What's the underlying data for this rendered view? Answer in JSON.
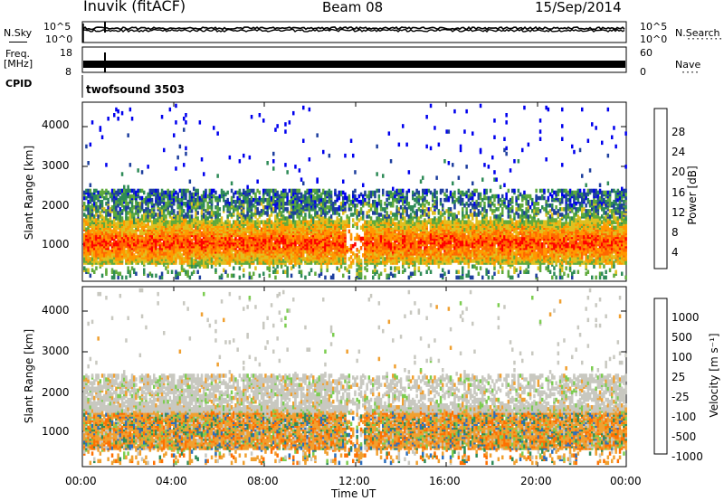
{
  "header": {
    "station": "Inuvik (fitACF)",
    "beam": "Beam 08",
    "date": "15/Sep/2014"
  },
  "noise_panel": {
    "left_label": "N.Sky",
    "right_label": "N.Search",
    "left_ticks": [
      "10^5",
      "10^0"
    ],
    "right_ticks": [
      "10^5",
      "10^0"
    ]
  },
  "freq_panel": {
    "left_label_1": "Freq.",
    "left_label_2": "[MHz]",
    "right_label": "Nave",
    "left_ticks": [
      "18",
      "8"
    ],
    "right_ticks": [
      "60",
      "0"
    ]
  },
  "cpid_panel": {
    "label": "CPID",
    "program": "twofsound 3503"
  },
  "x_axis": {
    "title": "Time UT",
    "ticks": [
      "00:00",
      "04:00",
      "08:00",
      "12:00",
      "16:00",
      "20:00",
      "00:00"
    ]
  },
  "colors": {
    "power_scale": [
      "#0000ee",
      "#1e3f9e",
      "#2e8b57",
      "#5faa3c",
      "#e0c020",
      "#ff9900",
      "#ff6600",
      "#ff0000"
    ],
    "velocity_scale": [
      "#1e3fae",
      "#2b6fbe",
      "#2e8b57",
      "#7ccd50",
      "#c8c8c0",
      "#f0a030",
      "#ff7000",
      "#ff3000",
      "#ee0000"
    ]
  },
  "chart_data": [
    {
      "type": "heatmap",
      "title": "",
      "xlabel": "Time UT",
      "ylabel": "Slant Range [km]",
      "xlim": [
        0,
        24
      ],
      "ylim": [
        180,
        4500
      ],
      "y_ticks": [
        "1000",
        "2000",
        "3000",
        "4000"
      ],
      "colorbar": {
        "label": "Power [dB]",
        "ticks": [
          "28",
          "24",
          "20",
          "16",
          "12",
          "8",
          "4"
        ]
      }
    },
    {
      "type": "heatmap",
      "title": "",
      "xlabel": "Time UT",
      "ylabel": "Slant Range [km]",
      "xlim": [
        0,
        24
      ],
      "ylim": [
        180,
        4500
      ],
      "y_ticks": [
        "1000",
        "2000",
        "3000",
        "4000"
      ],
      "colorbar": {
        "label": "Velocity [m s⁻¹]",
        "ticks": [
          "1000",
          "500",
          "100",
          "25",
          "-25",
          "-100",
          "-500",
          "-1000"
        ]
      }
    }
  ]
}
